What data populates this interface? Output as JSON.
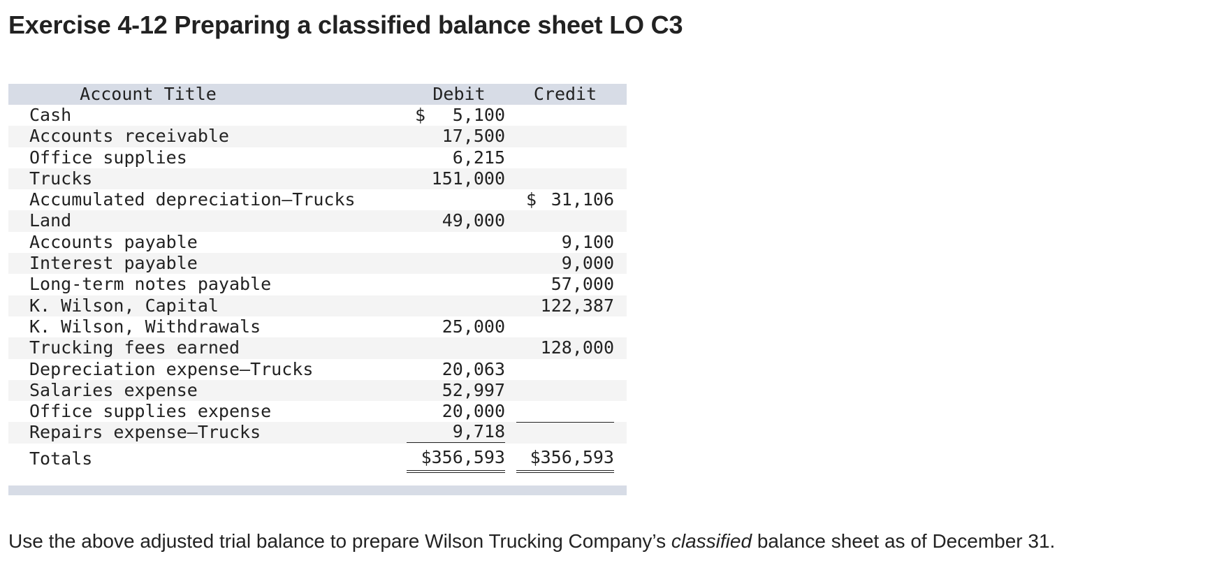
{
  "heading": "Exercise 4-12 Preparing a classified balance sheet LO C3",
  "table": {
    "headers": {
      "title": "Account Title",
      "debit": "Debit",
      "credit": "Credit"
    },
    "rows": [
      {
        "title": "Cash",
        "debit": "5,100",
        "credit": "",
        "debit_dollar": true
      },
      {
        "title": "Accounts receivable",
        "debit": "17,500",
        "credit": ""
      },
      {
        "title": "Office supplies",
        "debit": "6,215",
        "credit": ""
      },
      {
        "title": "Trucks",
        "debit": "151,000",
        "credit": ""
      },
      {
        "title": "Accumulated depreciation—Trucks",
        "debit": "",
        "credit": "31,106",
        "credit_dollar": true
      },
      {
        "title": "Land",
        "debit": "49,000",
        "credit": ""
      },
      {
        "title": "Accounts payable",
        "debit": "",
        "credit": "9,100"
      },
      {
        "title": "Interest payable",
        "debit": "",
        "credit": "9,000"
      },
      {
        "title": "Long-term notes payable",
        "debit": "",
        "credit": "57,000"
      },
      {
        "title": "K. Wilson, Capital",
        "debit": "",
        "credit": "122,387"
      },
      {
        "title": "K. Wilson, Withdrawals",
        "debit": "25,000",
        "credit": ""
      },
      {
        "title": "Trucking fees earned",
        "debit": "",
        "credit": "128,000"
      },
      {
        "title": "Depreciation expense—Trucks",
        "debit": "20,063",
        "credit": ""
      },
      {
        "title": "Salaries expense",
        "debit": "52,997",
        "credit": ""
      },
      {
        "title": "Office supplies expense",
        "debit": "20,000",
        "credit": ""
      },
      {
        "title": "Repairs expense—Trucks",
        "debit": "9,718",
        "credit": ""
      }
    ],
    "totals": {
      "title": "Totals",
      "debit": "$356,593",
      "credit": "$356,593"
    }
  },
  "instruction": {
    "before": "Use the above adjusted trial balance to prepare Wilson Trucking Company’s ",
    "emphasis": "classified",
    "after": " balance sheet as of December 31."
  }
}
